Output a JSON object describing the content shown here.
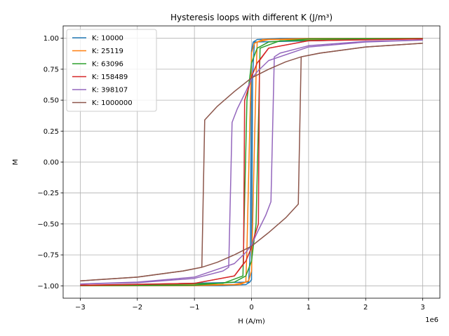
{
  "chart_data": {
    "type": "line",
    "title": "Hysteresis loops with different K (J/m³)",
    "xlabel": "H (A/m)",
    "ylabel": "M",
    "x_offset_label": "1e6",
    "xlim": [
      -3.3,
      3.3
    ],
    "ylim": [
      -1.1,
      1.1
    ],
    "x_ticks": [
      -3,
      -2,
      -1,
      0,
      1,
      2,
      3
    ],
    "x_tick_labels": [
      "−3",
      "−2",
      "−1",
      "0",
      "1",
      "2",
      "3"
    ],
    "y_ticks": [
      -1.0,
      -0.75,
      -0.5,
      -0.25,
      0.0,
      0.25,
      0.5,
      0.75,
      1.0
    ],
    "y_tick_labels": [
      "−1.00",
      "−0.75",
      "−0.50",
      "−0.25",
      "0.00",
      "0.25",
      "0.50",
      "0.75",
      "1.00"
    ],
    "grid": true,
    "legend_position": "top-left",
    "series": [
      {
        "name": "K: 10000",
        "color": "#1f77b4",
        "upper": [
          [
            -3,
            -0.999
          ],
          [
            -0.05,
            -0.97
          ],
          [
            -0.02,
            -0.7
          ],
          [
            0,
            0.9
          ],
          [
            0.03,
            0.97
          ],
          [
            0.1,
            0.99
          ],
          [
            0.5,
            0.999
          ],
          [
            3,
            1
          ]
        ],
        "lower": [
          [
            -3,
            -1
          ],
          [
            -0.5,
            -0.999
          ],
          [
            -0.1,
            -0.99
          ],
          [
            -0.03,
            -0.97
          ],
          [
            0,
            -0.95
          ],
          [
            0.02,
            0.7
          ],
          [
            0.05,
            0.97
          ],
          [
            3,
            0.999
          ]
        ]
      },
      {
        "name": "K: 25119",
        "color": "#ff7f0e",
        "upper": [
          [
            -3,
            -0.999
          ],
          [
            -0.3,
            -0.99
          ],
          [
            -0.1,
            -0.97
          ],
          [
            -0.08,
            -0.7
          ],
          [
            -0.02,
            0.5
          ],
          [
            0,
            0.88
          ],
          [
            0.05,
            0.96
          ],
          [
            0.2,
            0.99
          ],
          [
            1,
            0.998
          ],
          [
            3,
            1
          ]
        ],
        "lower": [
          [
            -3,
            -1
          ],
          [
            -1,
            -0.998
          ],
          [
            -0.2,
            -0.99
          ],
          [
            -0.05,
            -0.96
          ],
          [
            0,
            -0.88
          ],
          [
            0.02,
            -0.5
          ],
          [
            0.08,
            0.7
          ],
          [
            0.1,
            0.97
          ],
          [
            0.3,
            0.99
          ],
          [
            3,
            0.999
          ]
        ]
      },
      {
        "name": "K: 63096",
        "color": "#2ca02c",
        "upper": [
          [
            -3,
            -0.998
          ],
          [
            -0.5,
            -0.98
          ],
          [
            -0.15,
            -0.92
          ],
          [
            -0.13,
            -0.5
          ],
          [
            -0.08,
            0.5
          ],
          [
            0,
            0.8
          ],
          [
            0.1,
            0.92
          ],
          [
            0.3,
            0.97
          ],
          [
            1,
            0.995
          ],
          [
            3,
            0.999
          ]
        ],
        "lower": [
          [
            -3,
            -0.999
          ],
          [
            -1,
            -0.995
          ],
          [
            -0.3,
            -0.97
          ],
          [
            -0.1,
            -0.92
          ],
          [
            0,
            -0.8
          ],
          [
            0.08,
            -0.5
          ],
          [
            0.13,
            0.5
          ],
          [
            0.15,
            0.92
          ],
          [
            0.5,
            0.98
          ],
          [
            3,
            0.998
          ]
        ]
      },
      {
        "name": "K: 158489",
        "color": "#d62728",
        "upper": [
          [
            -3,
            -0.995
          ],
          [
            -1,
            -0.98
          ],
          [
            -0.3,
            -0.92
          ],
          [
            -0.14,
            -0.82
          ],
          [
            -0.12,
            0.5
          ],
          [
            -0.05,
            0.6
          ],
          [
            0,
            0.69
          ],
          [
            0.1,
            0.8
          ],
          [
            0.3,
            0.92
          ],
          [
            1,
            0.98
          ],
          [
            3,
            0.997
          ]
        ],
        "lower": [
          [
            -3,
            -0.997
          ],
          [
            -1,
            -0.98
          ],
          [
            -0.3,
            -0.92
          ],
          [
            -0.1,
            -0.8
          ],
          [
            0,
            -0.69
          ],
          [
            0.05,
            -0.6
          ],
          [
            0.12,
            -0.5
          ],
          [
            0.14,
            0.82
          ],
          [
            0.3,
            0.92
          ],
          [
            1,
            0.98
          ],
          [
            3,
            0.995
          ]
        ]
      },
      {
        "name": "K: 398107",
        "color": "#9467bd",
        "upper": [
          [
            -3,
            -0.985
          ],
          [
            -2,
            -0.975
          ],
          [
            -1,
            -0.94
          ],
          [
            -0.5,
            -0.88
          ],
          [
            -0.4,
            -0.85
          ],
          [
            -0.34,
            0.32
          ],
          [
            -0.25,
            0.43
          ],
          [
            -0.1,
            0.57
          ],
          [
            0,
            0.67
          ],
          [
            0.1,
            0.73
          ],
          [
            0.3,
            0.82
          ],
          [
            1,
            0.93
          ],
          [
            2,
            0.97
          ],
          [
            3,
            0.985
          ]
        ],
        "lower": [
          [
            -3,
            -0.985
          ],
          [
            -2,
            -0.97
          ],
          [
            -1,
            -0.93
          ],
          [
            -0.3,
            -0.82
          ],
          [
            -0.1,
            -0.73
          ],
          [
            0,
            -0.67
          ],
          [
            0.1,
            -0.57
          ],
          [
            0.25,
            -0.43
          ],
          [
            0.34,
            -0.32
          ],
          [
            0.4,
            0.85
          ],
          [
            0.5,
            0.88
          ],
          [
            1,
            0.94
          ],
          [
            2,
            0.975
          ],
          [
            3,
            0.985
          ]
        ]
      },
      {
        "name": "K: 1000000",
        "color": "#8c564b",
        "upper": [
          [
            -3,
            -0.96
          ],
          [
            -2,
            -0.93
          ],
          [
            -1.2,
            -0.88
          ],
          [
            -0.87,
            -0.85
          ],
          [
            -0.82,
            0.34
          ],
          [
            -0.6,
            0.45
          ],
          [
            -0.3,
            0.57
          ],
          [
            0,
            0.68
          ],
          [
            0.3,
            0.75
          ],
          [
            0.6,
            0.81
          ],
          [
            0.87,
            0.85
          ],
          [
            1.2,
            0.88
          ],
          [
            2,
            0.93
          ],
          [
            3,
            0.96
          ]
        ],
        "lower": [
          [
            -3,
            -0.96
          ],
          [
            -2,
            -0.93
          ],
          [
            -1.2,
            -0.88
          ],
          [
            -0.87,
            -0.85
          ],
          [
            -0.6,
            -0.81
          ],
          [
            -0.3,
            -0.75
          ],
          [
            0,
            -0.68
          ],
          [
            0.3,
            -0.57
          ],
          [
            0.6,
            -0.45
          ],
          [
            0.82,
            -0.34
          ],
          [
            0.87,
            0.85
          ],
          [
            1.2,
            0.88
          ],
          [
            2,
            0.93
          ],
          [
            3,
            0.96
          ]
        ]
      }
    ]
  }
}
